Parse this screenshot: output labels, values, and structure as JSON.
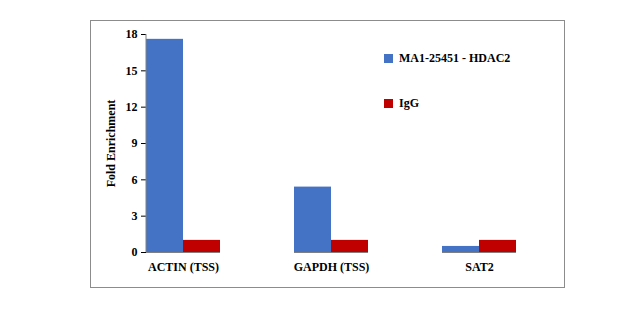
{
  "chart_data": {
    "type": "bar",
    "y_label": "Fold Enrichment",
    "categories": [
      "ACTIN (TSS)",
      "GAPDH (TSS)",
      "SAT2"
    ],
    "series": [
      {
        "name": "MA1-25451 - HDAC2",
        "color": "#4472c4",
        "values": [
          17.6,
          5.4,
          0.5
        ]
      },
      {
        "name": "IgG",
        "color": "#c00000",
        "values": [
          1,
          1,
          1
        ]
      }
    ],
    "ylim": [
      0,
      18
    ],
    "yticks": [
      0,
      3,
      6,
      9,
      12,
      15,
      18
    ],
    "legend": "top-right",
    "grid": false
  }
}
